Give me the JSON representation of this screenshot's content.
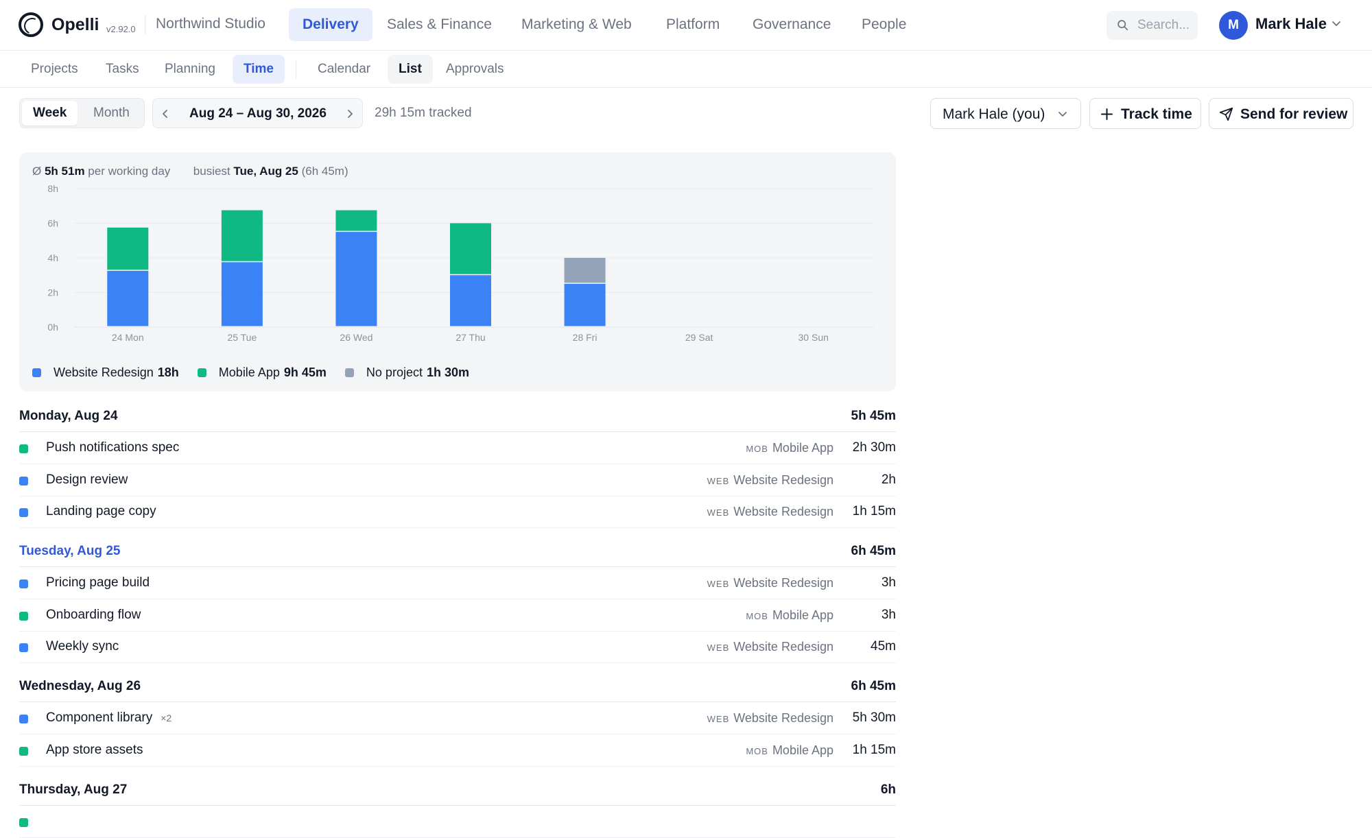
{
  "app": {
    "name": "Opelli",
    "version": "v2.92.0",
    "workspace": "Northwind Studio"
  },
  "nav": {
    "tabs": [
      {
        "label": "Delivery",
        "active": true
      },
      {
        "label": "Sales & Finance"
      },
      {
        "label": "Marketing & Web"
      },
      {
        "label": "Platform"
      },
      {
        "label": "Governance"
      },
      {
        "label": "People"
      }
    ],
    "search_placeholder": "Search...",
    "user": {
      "initial": "M",
      "name": "Mark Hale"
    }
  },
  "subnav": {
    "tabs": [
      {
        "label": "Projects"
      },
      {
        "label": "Tasks"
      },
      {
        "label": "Planning"
      },
      {
        "label": "Time",
        "active": true
      }
    ],
    "views": [
      {
        "label": "Calendar"
      },
      {
        "label": "List",
        "active": true
      },
      {
        "label": "Approvals"
      }
    ]
  },
  "toolbar": {
    "period": [
      {
        "label": "Week",
        "active": true
      },
      {
        "label": "Month"
      }
    ],
    "range_label": "Aug 24 – Aug 30, 2026",
    "tracked": "29h 15m tracked",
    "person_select": "Mark Hale (you)",
    "track_button": "Track time",
    "send_button": "Send for review"
  },
  "stats": {
    "avg_symbol": "Ø",
    "avg_value": "5h 51m",
    "avg_label": "per working day",
    "busiest_label": "busiest",
    "busiest_day": "Tue, Aug 25",
    "busiest_value": "(6h 45m)"
  },
  "colors": {
    "web": "#3b82f6",
    "mob": "#10b981",
    "none": "#94a3b8",
    "accent": "#2f59d9"
  },
  "chart_data": {
    "type": "bar",
    "stacked": true,
    "categories": [
      "24 Mon",
      "25 Tue",
      "26 Wed",
      "27 Thu",
      "28 Fri",
      "29 Sat",
      "30 Sun"
    ],
    "series": [
      {
        "name": "Website Redesign",
        "color": "#3b82f6",
        "values": [
          3.25,
          3.75,
          5.5,
          3.0,
          2.5,
          0,
          0
        ]
      },
      {
        "name": "Mobile App",
        "color": "#10b981",
        "values": [
          2.5,
          3.0,
          1.25,
          3.0,
          0,
          0,
          0
        ]
      },
      {
        "name": "No project",
        "color": "#94a3b8",
        "values": [
          0,
          0,
          0,
          0,
          1.5,
          0,
          0
        ]
      }
    ],
    "yticks": [
      "0h",
      "2h",
      "4h",
      "6h",
      "8h"
    ],
    "ylim": [
      0,
      8
    ],
    "grid": true,
    "legend_position": "bottom-left"
  },
  "legend": [
    {
      "name": "Website Redesign",
      "total": "18h",
      "color": "#3b82f6"
    },
    {
      "name": "Mobile App",
      "total": "9h 45m",
      "color": "#10b981"
    },
    {
      "name": "No project",
      "total": "1h 30m",
      "color": "#94a3b8"
    }
  ],
  "days": [
    {
      "title": "Monday, Aug 24",
      "total": "5h 45m",
      "entries": [
        {
          "title": "Push notifications spec",
          "code": "MOB",
          "project": "Mobile App",
          "duration": "2h 30m",
          "color": "#10b981"
        },
        {
          "title": "Design review",
          "code": "WEB",
          "project": "Website Redesign",
          "duration": "2h",
          "color": "#3b82f6"
        },
        {
          "title": "Landing page copy",
          "code": "WEB",
          "project": "Website Redesign",
          "duration": "1h 15m",
          "color": "#3b82f6"
        }
      ]
    },
    {
      "title": "Tuesday, Aug 25",
      "total": "6h 45m",
      "today": true,
      "entries": [
        {
          "title": "Pricing page build",
          "code": "WEB",
          "project": "Website Redesign",
          "duration": "3h",
          "color": "#3b82f6"
        },
        {
          "title": "Onboarding flow",
          "code": "MOB",
          "project": "Mobile App",
          "duration": "3h",
          "color": "#10b981"
        },
        {
          "title": "Weekly sync",
          "code": "WEB",
          "project": "Website Redesign",
          "duration": "45m",
          "color": "#3b82f6"
        }
      ]
    },
    {
      "title": "Wednesday, Aug 26",
      "total": "6h 45m",
      "entries": [
        {
          "title": "Component library",
          "count": "×2",
          "code": "WEB",
          "project": "Website Redesign",
          "duration": "5h 30m",
          "color": "#3b82f6"
        },
        {
          "title": "App store assets",
          "code": "MOB",
          "project": "Mobile App",
          "duration": "1h 15m",
          "color": "#10b981"
        }
      ]
    },
    {
      "title": "Thursday, Aug 27",
      "total": "6h",
      "entries": []
    }
  ]
}
